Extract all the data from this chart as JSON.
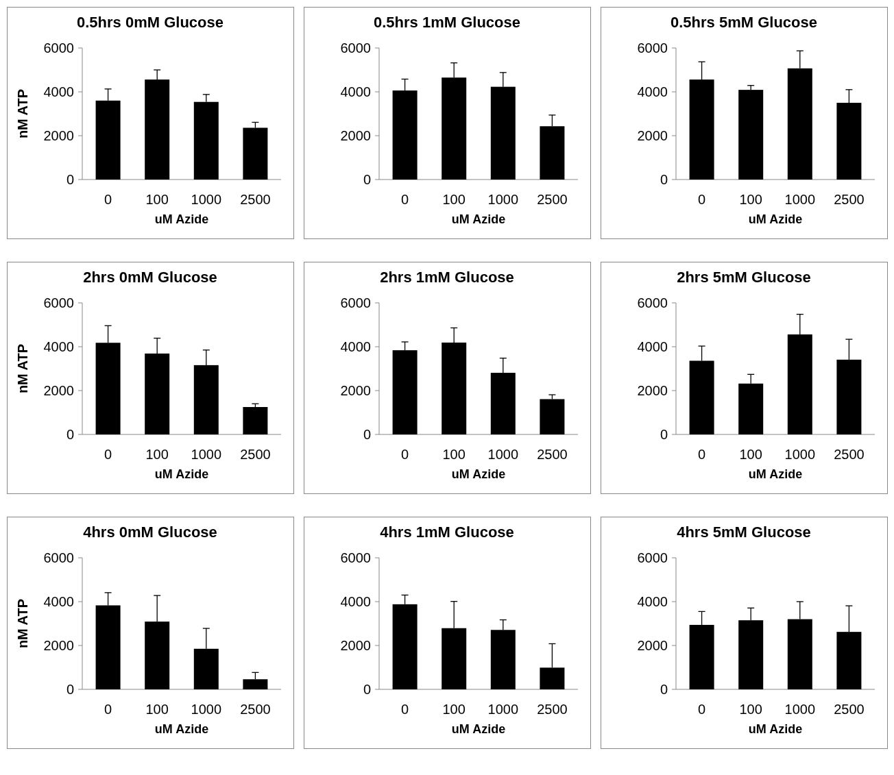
{
  "chart_data": [
    {
      "type": "bar",
      "title": "0.5hrs 0mM Glucose",
      "xlabel": "uM Azide",
      "ylabel": "nM ATP",
      "categories": [
        "0",
        "100",
        "1000",
        "2500"
      ],
      "values": [
        3600,
        4560,
        3540,
        2360
      ],
      "errors": [
        [
          3600,
          4130
        ],
        [
          4560,
          5000
        ],
        [
          3540,
          3880
        ],
        [
          2360,
          2610
        ]
      ],
      "color": "#000000",
      "ylim": [
        0,
        6000
      ],
      "yticks": [
        0,
        2000,
        4000,
        6000
      ]
    },
    {
      "type": "bar",
      "title": "0.5hrs 1mM Glucose",
      "xlabel": "uM Azide",
      "categories": [
        "0",
        "100",
        "1000",
        "2500"
      ],
      "values": [
        4060,
        4650,
        4230,
        2430
      ],
      "errors": [
        [
          4060,
          4580
        ],
        [
          4650,
          5320
        ],
        [
          4230,
          4880
        ],
        [
          2430,
          2940
        ]
      ],
      "color": "#000000",
      "ylim": [
        0,
        6000
      ],
      "yticks": [
        0,
        2000,
        4000,
        6000
      ]
    },
    {
      "type": "bar",
      "title": "0.5hrs 5mM Glucose",
      "xlabel": "uM Azide",
      "categories": [
        "0",
        "100",
        "1000",
        "2500"
      ],
      "values": [
        4560,
        4090,
        5070,
        3500
      ],
      "errors": [
        [
          4560,
          5370
        ],
        [
          4090,
          4290
        ],
        [
          5070,
          5870
        ],
        [
          3500,
          4100
        ]
      ],
      "color": "#000000",
      "ylim": [
        0,
        6000
      ],
      "yticks": [
        0,
        2000,
        4000,
        6000
      ]
    },
    {
      "type": "bar",
      "title": "2hrs 0mM Glucose",
      "xlabel": "uM Azide",
      "ylabel": "nM ATP",
      "categories": [
        "0",
        "100",
        "1000",
        "2500"
      ],
      "values": [
        4180,
        3690,
        3160,
        1250
      ],
      "errors": [
        [
          4180,
          4960
        ],
        [
          3690,
          4390
        ],
        [
          3160,
          3850
        ],
        [
          1250,
          1400
        ]
      ],
      "color": "#000000",
      "ylim": [
        0,
        6000
      ],
      "yticks": [
        0,
        2000,
        4000,
        6000
      ]
    },
    {
      "type": "bar",
      "title": "2hrs 1mM Glucose",
      "xlabel": "uM Azide",
      "categories": [
        "0",
        "100",
        "1000",
        "2500"
      ],
      "values": [
        3840,
        4190,
        2810,
        1610
      ],
      "errors": [
        [
          3840,
          4220
        ],
        [
          4190,
          4860
        ],
        [
          2810,
          3480
        ],
        [
          1610,
          1810
        ]
      ],
      "color": "#000000",
      "ylim": [
        0,
        6000
      ],
      "yticks": [
        0,
        2000,
        4000,
        6000
      ]
    },
    {
      "type": "bar",
      "title": "2hrs 5mM Glucose",
      "xlabel": "uM Azide",
      "categories": [
        "0",
        "100",
        "1000",
        "2500"
      ],
      "values": [
        3360,
        2320,
        4560,
        3410
      ],
      "errors": [
        [
          3360,
          4030
        ],
        [
          2320,
          2740
        ],
        [
          4560,
          5480
        ],
        [
          3410,
          4340
        ]
      ],
      "color": "#000000",
      "ylim": [
        0,
        6000
      ],
      "yticks": [
        0,
        2000,
        4000,
        6000
      ]
    },
    {
      "type": "bar",
      "title": "4hrs 0mM Glucose",
      "xlabel": "uM Azide",
      "ylabel": "nM ATP",
      "categories": [
        "0",
        "100",
        "1000",
        "2500"
      ],
      "values": [
        3830,
        3090,
        1850,
        460
      ],
      "errors": [
        [
          3830,
          4410
        ],
        [
          3090,
          4280
        ],
        [
          1850,
          2780
        ],
        [
          460,
          770
        ]
      ],
      "color": "#000000",
      "ylim": [
        0,
        6000
      ],
      "yticks": [
        0,
        2000,
        4000,
        6000
      ]
    },
    {
      "type": "bar",
      "title": "4hrs 1mM Glucose",
      "xlabel": "uM Azide",
      "categories": [
        "0",
        "100",
        "1000",
        "2500"
      ],
      "values": [
        3880,
        2790,
        2710,
        990
      ],
      "errors": [
        [
          3880,
          4300
        ],
        [
          2790,
          4010
        ],
        [
          2710,
          3170
        ],
        [
          990,
          2080
        ]
      ],
      "color": "#000000",
      "ylim": [
        0,
        6000
      ],
      "yticks": [
        0,
        2000,
        4000,
        6000
      ]
    },
    {
      "type": "bar",
      "title": "4hrs 5mM Glucose",
      "xlabel": "uM Azide",
      "categories": [
        "0",
        "100",
        "1000",
        "2500"
      ],
      "values": [
        2940,
        3150,
        3200,
        2620
      ],
      "errors": [
        [
          2940,
          3550
        ],
        [
          3150,
          3710
        ],
        [
          3200,
          4000
        ],
        [
          2620,
          3810
        ]
      ],
      "color": "#000000",
      "ylim": [
        0,
        6000
      ],
      "yticks": [
        0,
        2000,
        4000,
        6000
      ]
    }
  ]
}
